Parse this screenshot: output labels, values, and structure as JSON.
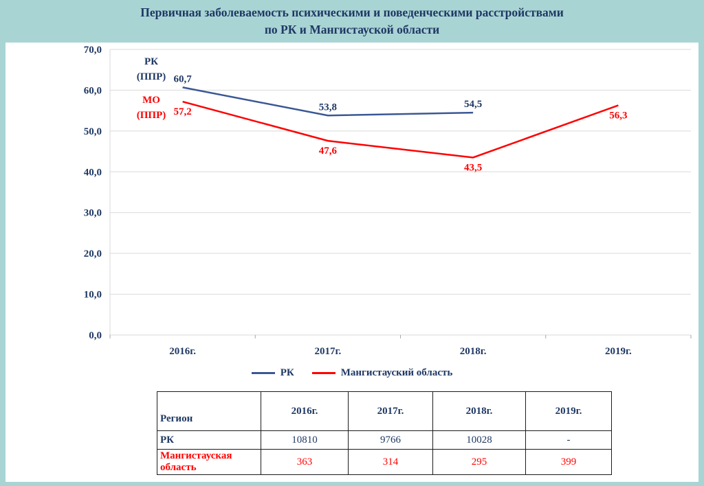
{
  "title": {
    "line1": "Первичная заболеваемость психическими и поведенческими расстройствами",
    "line2": "по РК и Мангистауской области"
  },
  "colors": {
    "background": "#A9D4D4",
    "panel": "#FFFFFF",
    "navy_text": "#1F3864",
    "rk_line": "#3A5795",
    "mo_line": "#FF0000",
    "gridline": "#D9D9D9"
  },
  "chart_data": {
    "type": "line",
    "categories": [
      "2016г.",
      "2017г.",
      "2018г.",
      "2019г."
    ],
    "series": [
      {
        "name": "РК",
        "values": [
          60.7,
          53.8,
          54.5,
          null
        ],
        "labels": [
          "60,7",
          "53,8",
          "54,5",
          ""
        ],
        "color": "#3A5795",
        "label_color": "#1F3864"
      },
      {
        "name": "Мангистауский область",
        "values": [
          57.2,
          47.6,
          43.5,
          56.3
        ],
        "labels": [
          "57,2",
          "47,6",
          "43,5",
          "56,3"
        ],
        "color": "#FF0000",
        "label_color": "#FF0000"
      }
    ],
    "ylim": [
      0,
      70
    ],
    "ytick_step": 10,
    "ytick_labels": [
      "0,0",
      "10,0",
      "20,0",
      "30,0",
      "40,0",
      "50,0",
      "60,0",
      "70,0"
    ],
    "grid": true,
    "legend_position": "bottom",
    "legend": [
      {
        "label": "РК",
        "color": "#3A5795"
      },
      {
        "label": "Мангистауский область",
        "color": "#FF0000"
      }
    ],
    "annotations": [
      {
        "lines": [
          "РК",
          "(ППР)"
        ],
        "color": "#1F3864"
      },
      {
        "lines": [
          "МО",
          "(ППР)"
        ],
        "color": "#FF0000"
      }
    ]
  },
  "table": {
    "header": [
      "Регион",
      "2016г.",
      "2017г.",
      "2018г.",
      "2019г."
    ],
    "rows": [
      {
        "label": "РК",
        "values": [
          "10810",
          "9766",
          "10028",
          "-"
        ]
      },
      {
        "label": "Мангистауская область",
        "values": [
          "363",
          "314",
          "295",
          "399"
        ]
      }
    ]
  }
}
